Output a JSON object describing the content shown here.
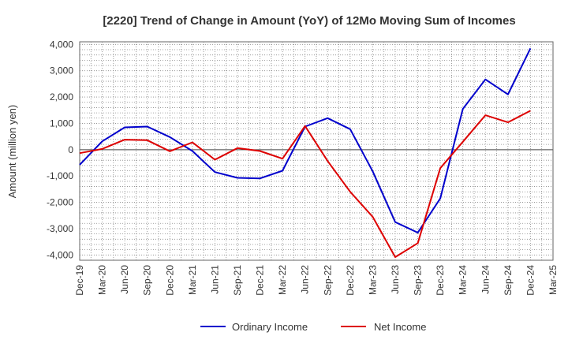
{
  "chart_data": {
    "type": "line",
    "title": "[2220]  Trend of Change in Amount (YoY) of 12Mo Moving Sum of Incomes",
    "ylabel": "Amount (million yen)",
    "xlabel": "",
    "ylim": [
      -4200,
      4100
    ],
    "yticks": [
      4000,
      3000,
      2000,
      1000,
      0,
      -1000,
      -2000,
      -3000,
      -4000
    ],
    "ytick_labels": [
      "4,000",
      "3,000",
      "2,000",
      "1,000",
      "0",
      "-1,000",
      "-2,000",
      "-3,000",
      "-4,000"
    ],
    "x_tick_labels": [
      "Dec-19",
      "Mar-20",
      "Jun-20",
      "Sep-20",
      "Dec-20",
      "Mar-21",
      "Jun-21",
      "Sep-21",
      "Dec-21",
      "Mar-22",
      "Jun-22",
      "Sep-22",
      "Dec-22",
      "Mar-23",
      "Jun-23",
      "Sep-23",
      "Dec-23",
      "Mar-24",
      "Jun-24",
      "Sep-24",
      "Dec-24",
      "Mar-25"
    ],
    "grid": true,
    "legend_position": "bottom-center",
    "series": [
      {
        "name": "Ordinary Income",
        "color": "#0000cc",
        "x": [
          "Dec-19",
          "Mar-20",
          "Jun-20",
          "Sep-20",
          "Dec-20",
          "Mar-21",
          "Jun-21",
          "Sep-21",
          "Dec-21",
          "Mar-22",
          "Jun-22",
          "Sep-22",
          "Dec-22",
          "Mar-23",
          "Jun-23",
          "Sep-23",
          "Dec-23",
          "Mar-24",
          "Jun-24",
          "Sep-24",
          "Dec-24"
        ],
        "values": [
          -570,
          320,
          850,
          880,
          480,
          -50,
          -850,
          -1070,
          -1090,
          -800,
          880,
          1200,
          780,
          -820,
          -2750,
          -3150,
          -1850,
          1550,
          2670,
          2100,
          3850
        ]
      },
      {
        "name": "Net Income",
        "color": "#dd0000",
        "x": [
          "Dec-19",
          "Mar-20",
          "Jun-20",
          "Sep-20",
          "Dec-20",
          "Mar-21",
          "Jun-21",
          "Sep-21",
          "Dec-21",
          "Mar-22",
          "Jun-22",
          "Sep-22",
          "Dec-22",
          "Mar-23",
          "Jun-23",
          "Sep-23",
          "Dec-23",
          "Mar-24",
          "Jun-24",
          "Sep-24",
          "Dec-24"
        ],
        "values": [
          -130,
          30,
          380,
          360,
          -60,
          280,
          -380,
          60,
          -50,
          -340,
          900,
          -430,
          -1600,
          -2550,
          -4080,
          -3550,
          -700,
          300,
          1310,
          1040,
          1480
        ]
      }
    ]
  }
}
